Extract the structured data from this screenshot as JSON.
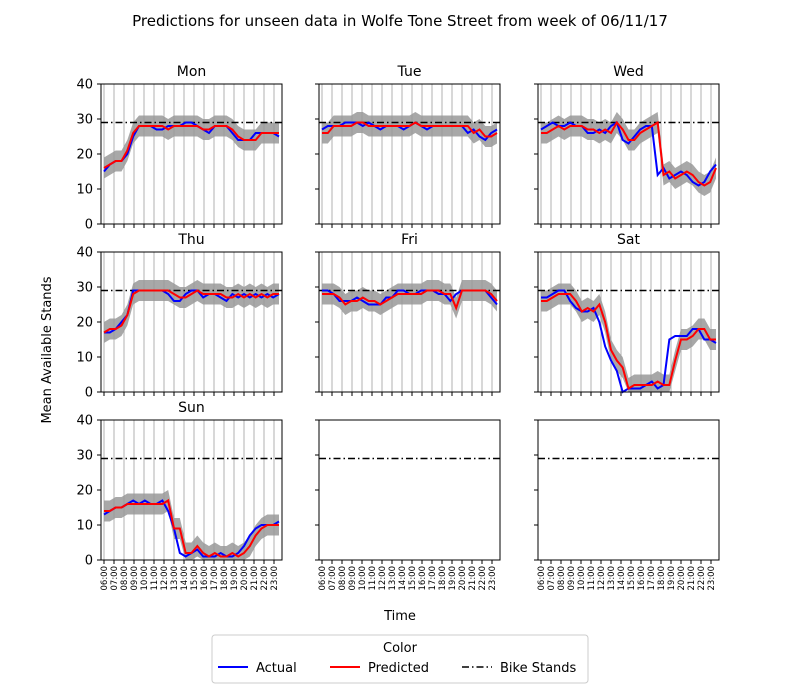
{
  "title": "Predictions for unseen data in Wolfe Tone Street from week of 06/11/17",
  "xlabel": "Time",
  "ylabel": "Mean Available Stands",
  "legend": {
    "title": "Color",
    "entries": [
      {
        "label": "Actual",
        "color": "#0000ff",
        "style": "solid"
      },
      {
        "label": "Predicted",
        "color": "#ff0000",
        "style": "solid"
      },
      {
        "label": "Bike Stands",
        "color": "#000000",
        "style": "dashdot"
      }
    ]
  },
  "colors": {
    "actual": "#0000ff",
    "predicted": "#ff0000",
    "band": "#999999",
    "grid": "#b0b0b0"
  },
  "chart_data": {
    "type": "line",
    "ylim": [
      0,
      40
    ],
    "yticks": [
      "0",
      "10",
      "20",
      "30",
      "40"
    ],
    "xticks": [
      "06:00",
      "07:00",
      "08:00",
      "09:00",
      "10:00",
      "11:00",
      "12:00",
      "13:00",
      "14:00",
      "15:00",
      "16:00",
      "17:00",
      "18:00",
      "19:00",
      "20:00",
      "21:00",
      "22:00",
      "23:00"
    ],
    "bike_stands": 29,
    "grid": true,
    "legend_position": "bottom-center",
    "panels": [
      {
        "name": "Mon",
        "actual": [
          15,
          17,
          18,
          18,
          20,
          25,
          28,
          28,
          28,
          27,
          27,
          28,
          28,
          28,
          29,
          29,
          28,
          27,
          26,
          28,
          28,
          28,
          26,
          24,
          24,
          24,
          26,
          26,
          26,
          26,
          25
        ],
        "predicted": [
          16,
          17,
          18,
          18,
          21,
          26,
          28,
          28,
          28,
          28,
          28,
          27,
          28,
          28,
          28,
          28,
          28,
          27,
          27,
          28,
          28,
          28,
          27,
          25,
          24,
          24,
          24,
          26,
          26,
          26,
          26
        ]
      },
      {
        "name": "Tue",
        "actual": [
          27,
          28,
          28,
          28,
          29,
          29,
          29,
          28,
          29,
          28,
          27,
          28,
          28,
          28,
          27,
          28,
          29,
          28,
          27,
          28,
          28,
          28,
          28,
          28,
          28,
          26,
          27,
          25,
          24,
          26,
          27
        ],
        "predicted": [
          26,
          26,
          28,
          28,
          28,
          28,
          29,
          29,
          28,
          28,
          28,
          28,
          28,
          28,
          28,
          28,
          29,
          28,
          28,
          28,
          28,
          28,
          28,
          28,
          28,
          28,
          26,
          27,
          25,
          25,
          26
        ]
      },
      {
        "name": "Wed",
        "actual": [
          27,
          28,
          29,
          28,
          28,
          29,
          28,
          28,
          26,
          26,
          27,
          26,
          28,
          29,
          24,
          23,
          25,
          27,
          28,
          28,
          14,
          16,
          13,
          14,
          15,
          14,
          12,
          11,
          12,
          15,
          17
        ],
        "predicted": [
          26,
          26,
          27,
          28,
          27,
          28,
          28,
          28,
          27,
          27,
          26,
          27,
          26,
          29,
          27,
          24,
          24,
          26,
          27,
          28,
          29,
          14,
          15,
          13,
          14,
          15,
          14,
          12,
          11,
          12,
          16
        ]
      },
      {
        "name": "Thu",
        "actual": [
          17,
          17,
          18,
          20,
          22,
          29,
          29,
          29,
          29,
          29,
          29,
          28,
          26,
          26,
          28,
          29,
          29,
          27,
          28,
          28,
          27,
          26,
          28,
          27,
          28,
          27,
          28,
          27,
          28,
          27,
          28
        ],
        "predicted": [
          17,
          18,
          18,
          19,
          22,
          28,
          29,
          29,
          29,
          29,
          29,
          29,
          28,
          27,
          27,
          28,
          29,
          28,
          28,
          28,
          28,
          27,
          27,
          28,
          27,
          28,
          27,
          28,
          27,
          28,
          28
        ]
      },
      {
        "name": "Fri",
        "actual": [
          29,
          29,
          28,
          26,
          26,
          26,
          27,
          26,
          25,
          25,
          25,
          27,
          27,
          29,
          29,
          28,
          28,
          29,
          29,
          29,
          28,
          28,
          26,
          28,
          29,
          29,
          29,
          29,
          29,
          27,
          25
        ],
        "predicted": [
          28,
          28,
          28,
          27,
          25,
          26,
          26,
          27,
          26,
          26,
          25,
          26,
          27,
          28,
          28,
          28,
          28,
          28,
          29,
          29,
          29,
          28,
          28,
          24,
          29,
          29,
          29,
          29,
          29,
          28,
          26
        ]
      },
      {
        "name": "Sat",
        "actual": [
          27,
          27,
          28,
          29,
          29,
          26,
          24,
          23,
          23,
          24,
          20,
          13,
          9,
          6,
          0,
          1,
          1,
          1,
          2,
          3,
          1,
          2,
          15,
          16,
          16,
          16,
          18,
          18,
          15,
          15,
          14
        ],
        "predicted": [
          26,
          26,
          27,
          28,
          28,
          28,
          26,
          23,
          24,
          23,
          25,
          20,
          12,
          9,
          7,
          1,
          2,
          2,
          2,
          2,
          3,
          2,
          2,
          9,
          15,
          15,
          16,
          18,
          18,
          15,
          15
        ]
      },
      {
        "name": "Sun",
        "actual": [
          13,
          14,
          15,
          15,
          16,
          17,
          16,
          17,
          16,
          16,
          17,
          14,
          9,
          2,
          1,
          2,
          3,
          1,
          1,
          1,
          2,
          1,
          1,
          2,
          4,
          7,
          9,
          10,
          10,
          10,
          11
        ],
        "predicted": [
          14,
          14,
          15,
          15,
          16,
          16,
          16,
          16,
          16,
          16,
          16,
          17,
          9,
          9,
          2,
          2,
          4,
          2,
          1,
          2,
          1,
          1,
          2,
          1,
          2,
          4,
          7,
          9,
          10,
          10,
          10
        ]
      },
      {
        "name": "",
        "actual": [],
        "predicted": []
      },
      {
        "name": "",
        "actual": [],
        "predicted": []
      }
    ]
  }
}
